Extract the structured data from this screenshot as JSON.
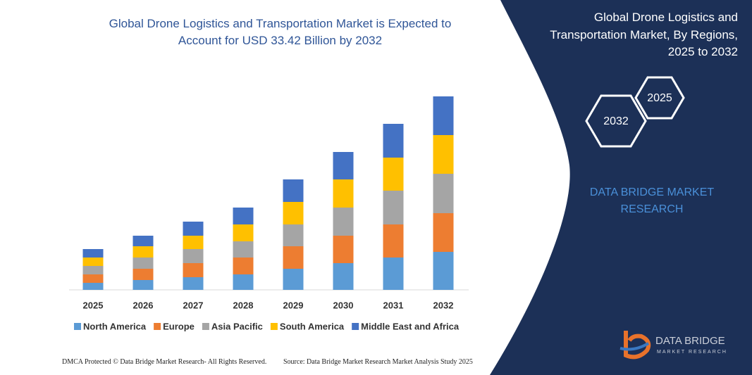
{
  "chart_data": {
    "type": "stacked-bar",
    "title": "Global Drone Logistics and Transportation Market is Expected to Account for USD 33.42 Billion by 2032",
    "categories": [
      "2025",
      "2026",
      "2027",
      "2028",
      "2029",
      "2030",
      "2031",
      "2032"
    ],
    "series": [
      {
        "name": "North America",
        "color": "#5b9bd5",
        "values": [
          10,
          14,
          18,
          22,
          30,
          38,
          46,
          54
        ]
      },
      {
        "name": "Europe",
        "color": "#ed7d31",
        "values": [
          12,
          16,
          20,
          24,
          32,
          39,
          47,
          55
        ]
      },
      {
        "name": "Asia Pacific",
        "color": "#a5a5a5",
        "values": [
          12,
          16,
          20,
          23,
          31,
          40,
          48,
          56
        ]
      },
      {
        "name": "South America",
        "color": "#ffc000",
        "values": [
          12,
          16,
          19,
          24,
          32,
          40,
          47,
          55
        ]
      },
      {
        "name": "Middle East and Africa",
        "color": "#4472c4",
        "values": [
          12,
          15,
          20,
          24,
          32,
          39,
          48,
          55
        ]
      }
    ]
  },
  "panel": {
    "title": "Global Drone Logistics and Transportation Market, By Regions, 2025 to 2032",
    "hex_end": "2032",
    "hex_start": "2025",
    "brand": "DATA BRIDGE MARKET RESEARCH",
    "logo_name": "DATA BRIDGE",
    "logo_sub": "MARKET RESEARCH"
  },
  "footer": {
    "left": "DMCA Protected © Data Bridge Market Research- All Rights Reserved.",
    "right": "Source: Data Bridge Market Research  Market Analysis Study 2025"
  }
}
